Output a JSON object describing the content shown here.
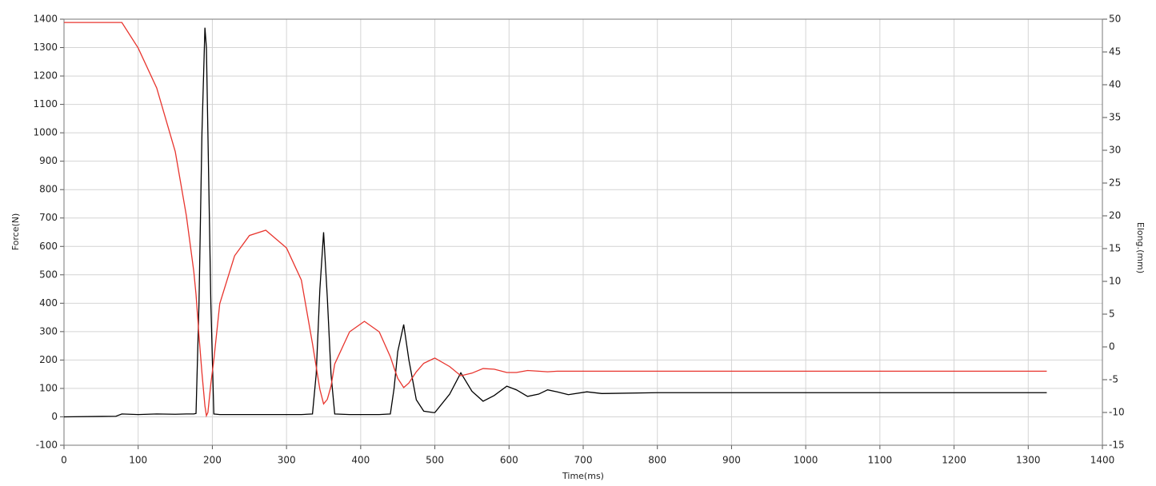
{
  "chart_data": {
    "type": "line",
    "x_label": "Time(ms)",
    "y_label": "Force(N)",
    "y2_label": "Elong.(mm)",
    "x": [
      0,
      70,
      78,
      100,
      125,
      150,
      165,
      175,
      178,
      182,
      186,
      190,
      192,
      194,
      198,
      202,
      210,
      230,
      250,
      272,
      300,
      320,
      335,
      340,
      345,
      350,
      355,
      360,
      365,
      385,
      405,
      425,
      440,
      445,
      450,
      458,
      465,
      475,
      485,
      498,
      500,
      520,
      535,
      550,
      565,
      580,
      597,
      610,
      625,
      640,
      652,
      665,
      680,
      705,
      725,
      800,
      1000,
      1200,
      1325
    ],
    "series": [
      {
        "name": "Force",
        "color": "#000000",
        "axis": "y",
        "values": [
          0,
          2,
          10,
          8,
          10,
          9,
          10,
          10,
          12,
          400,
          1000,
          1370,
          1300,
          1000,
          400,
          10,
          8,
          8,
          8,
          8,
          8,
          8,
          10,
          150,
          450,
          650,
          420,
          150,
          10,
          8,
          8,
          8,
          10,
          100,
          230,
          325,
          200,
          60,
          20,
          15,
          15,
          80,
          155,
          90,
          55,
          75,
          108,
          95,
          72,
          80,
          95,
          88,
          78,
          88,
          82,
          85,
          85,
          85,
          85
        ]
      },
      {
        "name": "Elong",
        "color": "#e8352e",
        "axis": "y2",
        "values": [
          49.5,
          49.5,
          49.5,
          45.6,
          39.5,
          29.8,
          20,
          11.5,
          8,
          1.7,
          -4,
          -9,
          -10.5,
          -10,
          -5.6,
          -2,
          6.6,
          13.9,
          17,
          17.8,
          15.1,
          10.2,
          0.5,
          -3,
          -6.5,
          -8.7,
          -8,
          -6,
          -2.6,
          2.3,
          3.9,
          2.3,
          -1.5,
          -3.2,
          -4.8,
          -6.2,
          -5.5,
          -3.8,
          -2.5,
          -1.8,
          -1.7,
          -3,
          -4.4,
          -4,
          -3.3,
          -3.4,
          -3.9,
          -3.9,
          -3.6,
          -3.7,
          -3.8,
          -3.7,
          -3.7,
          -3.7,
          -3.7,
          -3.7,
          -3.7,
          -3.7,
          -3.7
        ]
      }
    ],
    "xlim": [
      0,
      1400
    ],
    "xticks": [
      0,
      100,
      200,
      300,
      400,
      500,
      600,
      700,
      800,
      900,
      1000,
      1100,
      1200,
      1300,
      1400
    ],
    "ylim": [
      -100,
      1400
    ],
    "yticks": [
      -100,
      0,
      100,
      200,
      300,
      400,
      500,
      600,
      700,
      800,
      900,
      1000,
      1100,
      1200,
      1300,
      1400
    ],
    "y2lim": [
      -15,
      50
    ],
    "y2ticks": [
      -15,
      -10,
      -5,
      0,
      5,
      10,
      15,
      20,
      25,
      30,
      35,
      40,
      45,
      50
    ],
    "grid": true
  }
}
